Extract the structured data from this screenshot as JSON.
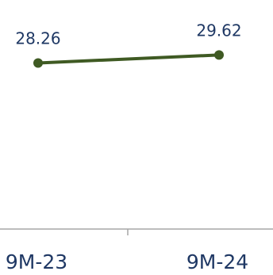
{
  "chart_data": {
    "type": "line",
    "categories": [
      "9M-23",
      "9M-24"
    ],
    "series": [
      {
        "values": [
          28.26,
          29.62
        ],
        "data_labels": [
          "28.26",
          "29.62"
        ]
      }
    ],
    "ylim": [
      0,
      32
    ],
    "grid": false,
    "legend": "none",
    "colors": {
      "line": "#3f5a23",
      "marker": "#3f5a23",
      "data_label": "#1f3864",
      "tick_label": "#1f3864",
      "axis": "#a6a6a6"
    }
  }
}
